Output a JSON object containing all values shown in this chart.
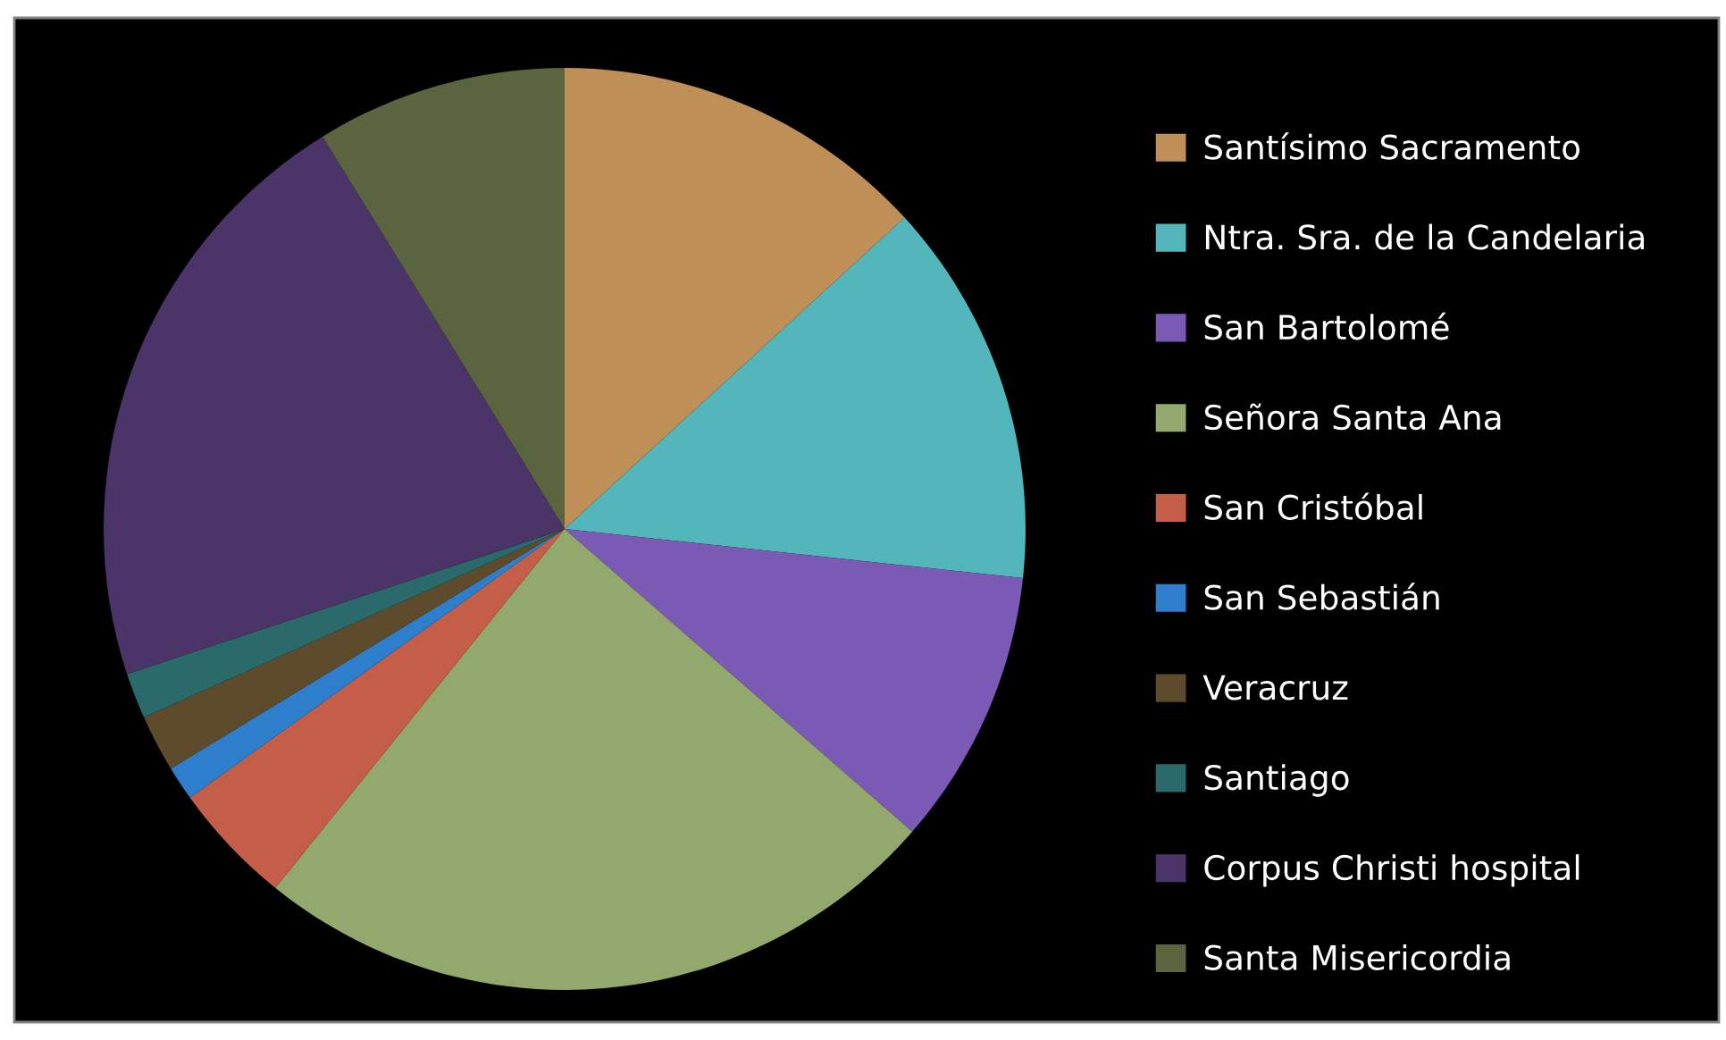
{
  "chart_data": {
    "type": "pie",
    "categories": [
      "Santísimo Sacramento",
      "Ntra. Sra. de la Candelaria",
      "San Bartolomé",
      "Señora Santa Ana",
      "San Cristóbal",
      "San Sebastián",
      "Veracruz",
      "Santiago",
      "Corpus Christi hospital",
      "Santa Misericordia"
    ],
    "values": [
      13.2,
      13.5,
      9.7,
      24.4,
      4.3,
      1.2,
      2.0,
      1.6,
      21.3,
      8.8
    ],
    "colors": [
      "#bf8f58",
      "#52b6ba",
      "#7a5ab4",
      "#93a86c",
      "#c55e48",
      "#2d7fcc",
      "#5e4b2c",
      "#2a6a6a",
      "#4b3468",
      "#5a6540"
    ],
    "legend": "right"
  }
}
